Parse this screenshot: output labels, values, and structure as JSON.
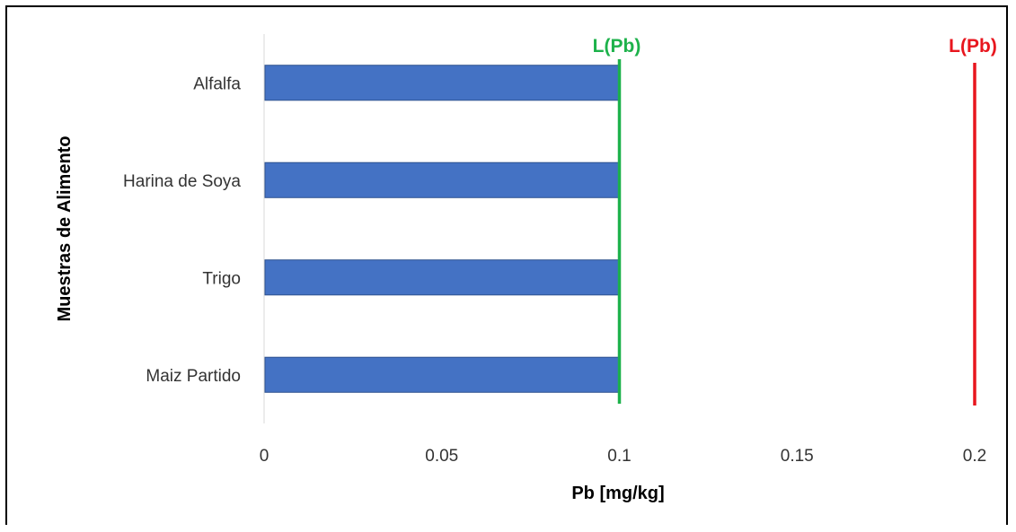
{
  "chart_data": {
    "type": "bar",
    "orientation": "horizontal",
    "categories": [
      "Alfalfa",
      "Harina de Soya",
      "Trigo",
      "Maiz Partido"
    ],
    "values": [
      0.1,
      0.1,
      0.1,
      0.1
    ],
    "xlabel": "Pb [mg/kg]",
    "ylabel": "Muestras de Alimento",
    "xlim": [
      0,
      0.2
    ],
    "xticks": [
      "0",
      "0.05",
      "0.1",
      "0.15",
      "0.2"
    ],
    "xtick_values": [
      0,
      0.05,
      0.1,
      0.15,
      0.2
    ],
    "bar_color": "#4472C4",
    "grid": false,
    "reference_lines": [
      {
        "label": "L(Pb)",
        "x": 0.1,
        "color": "#1DB24B"
      },
      {
        "label": "L(Pb)",
        "x": 0.2,
        "color": "#E8161E"
      }
    ]
  }
}
